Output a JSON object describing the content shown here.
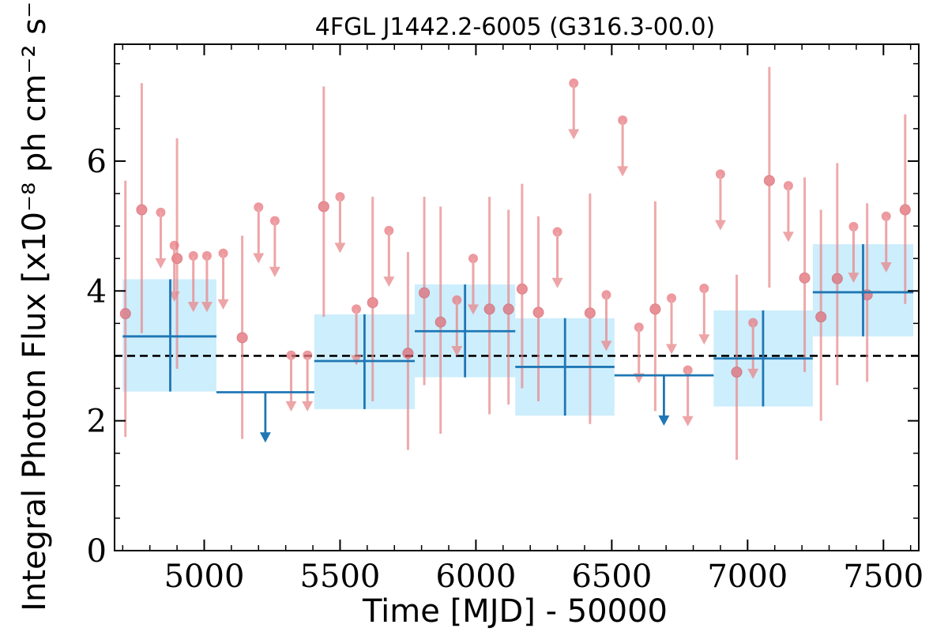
{
  "chart_data": {
    "type": "scatter",
    "title": "4FGL J1442.2-6005 (G316.3-00.0)",
    "xlabel": "Time [MJD] - 50000",
    "ylabel": "Integral Photon Flux [x10⁻⁸ ph cm⁻² s⁻¹]",
    "xlim": [
      4670,
      7630
    ],
    "ylim": [
      0,
      7.8
    ],
    "x_ticks": [
      5000,
      5500,
      6000,
      6500,
      7000,
      7500
    ],
    "x_tick_labels": [
      "5000",
      "5500",
      "6000",
      "6500",
      "7000",
      "7500"
    ],
    "y_ticks": [
      0,
      2,
      4,
      6
    ],
    "y_tick_labels": [
      "0",
      "2",
      "4",
      "6"
    ],
    "reference_line": {
      "y": 3.0,
      "style": "dashed",
      "color": "#000000"
    },
    "colors": {
      "short_bins": "#e8878a",
      "long_bins": "#1f77b4",
      "long_bins_band": "#cdeefc"
    },
    "short_bins": {
      "detections": [
        {
          "x": 4710,
          "y": 3.65,
          "ylo": 1.75,
          "yhi": 5.7
        },
        {
          "x": 4770,
          "y": 5.25,
          "ylo": 3.35,
          "yhi": 7.2
        },
        {
          "x": 4900,
          "y": 4.5,
          "ylo": 2.8,
          "yhi": 6.35
        },
        {
          "x": 5140,
          "y": 3.28,
          "ylo": 1.72,
          "yhi": 4.85
        },
        {
          "x": 5440,
          "y": 5.3,
          "ylo": 3.6,
          "yhi": 7.15
        },
        {
          "x": 5620,
          "y": 3.82,
          "ylo": 2.3,
          "yhi": 5.45
        },
        {
          "x": 5750,
          "y": 3.04,
          "ylo": 1.55,
          "yhi": 4.6
        },
        {
          "x": 5810,
          "y": 3.97,
          "ylo": 2.55,
          "yhi": 5.45
        },
        {
          "x": 5870,
          "y": 3.52,
          "ylo": 1.8,
          "yhi": 5.3
        },
        {
          "x": 6050,
          "y": 3.72,
          "ylo": 2.1,
          "yhi": 5.45
        },
        {
          "x": 6120,
          "y": 3.72,
          "ylo": 2.25,
          "yhi": 5.25
        },
        {
          "x": 6170,
          "y": 4.03,
          "ylo": 2.5,
          "yhi": 5.65
        },
        {
          "x": 6230,
          "y": 3.67,
          "ylo": 2.3,
          "yhi": 5.15
        },
        {
          "x": 6420,
          "y": 3.66,
          "ylo": 1.95,
          "yhi": 5.5
        },
        {
          "x": 6660,
          "y": 3.72,
          "ylo": 2.15,
          "yhi": 5.38
        },
        {
          "x": 6960,
          "y": 2.75,
          "ylo": 1.4,
          "yhi": 4.25
        },
        {
          "x": 7080,
          "y": 5.7,
          "ylo": 4.05,
          "yhi": 7.45
        },
        {
          "x": 7210,
          "y": 4.2,
          "ylo": 2.75,
          "yhi": 5.75
        },
        {
          "x": 7270,
          "y": 3.6,
          "ylo": 2.0,
          "yhi": 5.25
        },
        {
          "x": 7330,
          "y": 4.19,
          "ylo": 2.55,
          "yhi": 5.97
        },
        {
          "x": 7440,
          "y": 3.94,
          "ylo": 2.6,
          "yhi": 5.35
        },
        {
          "x": 7580,
          "y": 5.25,
          "ylo": 3.8,
          "yhi": 6.72
        }
      ],
      "upper_limits": [
        {
          "x": 4840,
          "y": 5.21,
          "y_end": 4.38
        },
        {
          "x": 4890,
          "y": 4.7,
          "y_end": 3.87
        },
        {
          "x": 4960,
          "y": 4.54,
          "y_end": 3.71
        },
        {
          "x": 5010,
          "y": 4.54,
          "y_end": 3.71
        },
        {
          "x": 5070,
          "y": 4.58,
          "y_end": 3.75
        },
        {
          "x": 5200,
          "y": 5.29,
          "y_end": 4.46
        },
        {
          "x": 5260,
          "y": 5.08,
          "y_end": 4.25
        },
        {
          "x": 5320,
          "y": 3.01,
          "y_end": 2.18
        },
        {
          "x": 5380,
          "y": 3.01,
          "y_end": 2.18
        },
        {
          "x": 5500,
          "y": 5.45,
          "y_end": 4.62
        },
        {
          "x": 5560,
          "y": 3.72,
          "y_end": 2.89
        },
        {
          "x": 5680,
          "y": 4.93,
          "y_end": 4.1
        },
        {
          "x": 5930,
          "y": 3.86,
          "y_end": 3.03
        },
        {
          "x": 5990,
          "y": 4.5,
          "y_end": 3.67
        },
        {
          "x": 6300,
          "y": 4.91,
          "y_end": 4.08
        },
        {
          "x": 6360,
          "y": 7.2,
          "y_end": 6.37
        },
        {
          "x": 6480,
          "y": 3.94,
          "y_end": 3.11
        },
        {
          "x": 6540,
          "y": 6.63,
          "y_end": 5.8
        },
        {
          "x": 6600,
          "y": 3.44,
          "y_end": 2.61
        },
        {
          "x": 6720,
          "y": 3.89,
          "y_end": 3.06
        },
        {
          "x": 6780,
          "y": 2.78,
          "y_end": 1.95
        },
        {
          "x": 6840,
          "y": 4.04,
          "y_end": 3.21
        },
        {
          "x": 6900,
          "y": 5.8,
          "y_end": 4.97
        },
        {
          "x": 7020,
          "y": 3.51,
          "y_end": 2.68
        },
        {
          "x": 7150,
          "y": 5.62,
          "y_end": 4.79
        },
        {
          "x": 7390,
          "y": 4.99,
          "y_end": 4.16
        },
        {
          "x": 7510,
          "y": 5.15,
          "y_end": 4.32
        }
      ]
    },
    "long_bins": {
      "detections": [
        {
          "x0": 4700,
          "x1": 5045,
          "xc": 4875,
          "y": 3.3,
          "ylo": 2.45,
          "yhi": 4.18
        },
        {
          "x0": 5405,
          "x1": 5775,
          "xc": 5590,
          "y": 2.92,
          "ylo": 2.18,
          "yhi": 3.64
        },
        {
          "x0": 5775,
          "x1": 6145,
          "xc": 5960,
          "y": 3.38,
          "ylo": 2.67,
          "yhi": 4.1
        },
        {
          "x0": 6145,
          "x1": 6510,
          "xc": 6328,
          "y": 2.83,
          "ylo": 2.08,
          "yhi": 3.58
        },
        {
          "x0": 6875,
          "x1": 7240,
          "xc": 7057,
          "y": 2.96,
          "ylo": 2.22,
          "yhi": 3.7
        },
        {
          "x0": 7240,
          "x1": 7610,
          "xc": 7425,
          "y": 3.98,
          "ylo": 3.3,
          "yhi": 4.72
        }
      ],
      "upper_limits": [
        {
          "x0": 5045,
          "x1": 5405,
          "xc": 5225,
          "y": 2.44,
          "y_end": 1.7
        },
        {
          "x0": 6510,
          "x1": 6875,
          "xc": 6692,
          "y": 2.7,
          "y_end": 1.96
        }
      ]
    }
  }
}
